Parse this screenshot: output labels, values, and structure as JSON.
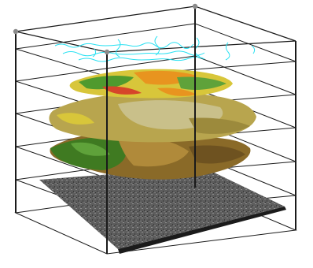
{
  "colors": {
    "background": "#ffffff",
    "frame": "#1a1a1a",
    "pole_knob": "#8a8a8a",
    "streams": "#29e1f2",
    "imagery_base": "#5d5d5d",
    "imagery_dark": "#3e3e3e",
    "imagery_light": "#8c8c8c",
    "landcover_green": "#4f9a2e",
    "landcover_orange": "#e8941f",
    "landcover_red": "#d6452a",
    "landcover_yellow": "#d8c63a",
    "olive_layer": "#b8a54e",
    "khaki_layer": "#c9c08a",
    "brown_layer": "#8a6a28",
    "dark_green_layer": "#3f7a21"
  },
  "layers": [
    {
      "id": "streams",
      "description_icon": "stream-network-icon"
    },
    {
      "id": "landcover",
      "description_icon": "landcover-map-icon"
    },
    {
      "id": "soils",
      "description_icon": "soil-layer-icon"
    },
    {
      "id": "geology",
      "description_icon": "geology-layer-icon"
    },
    {
      "id": "imagery",
      "description_icon": "aerial-imagery-icon"
    }
  ]
}
